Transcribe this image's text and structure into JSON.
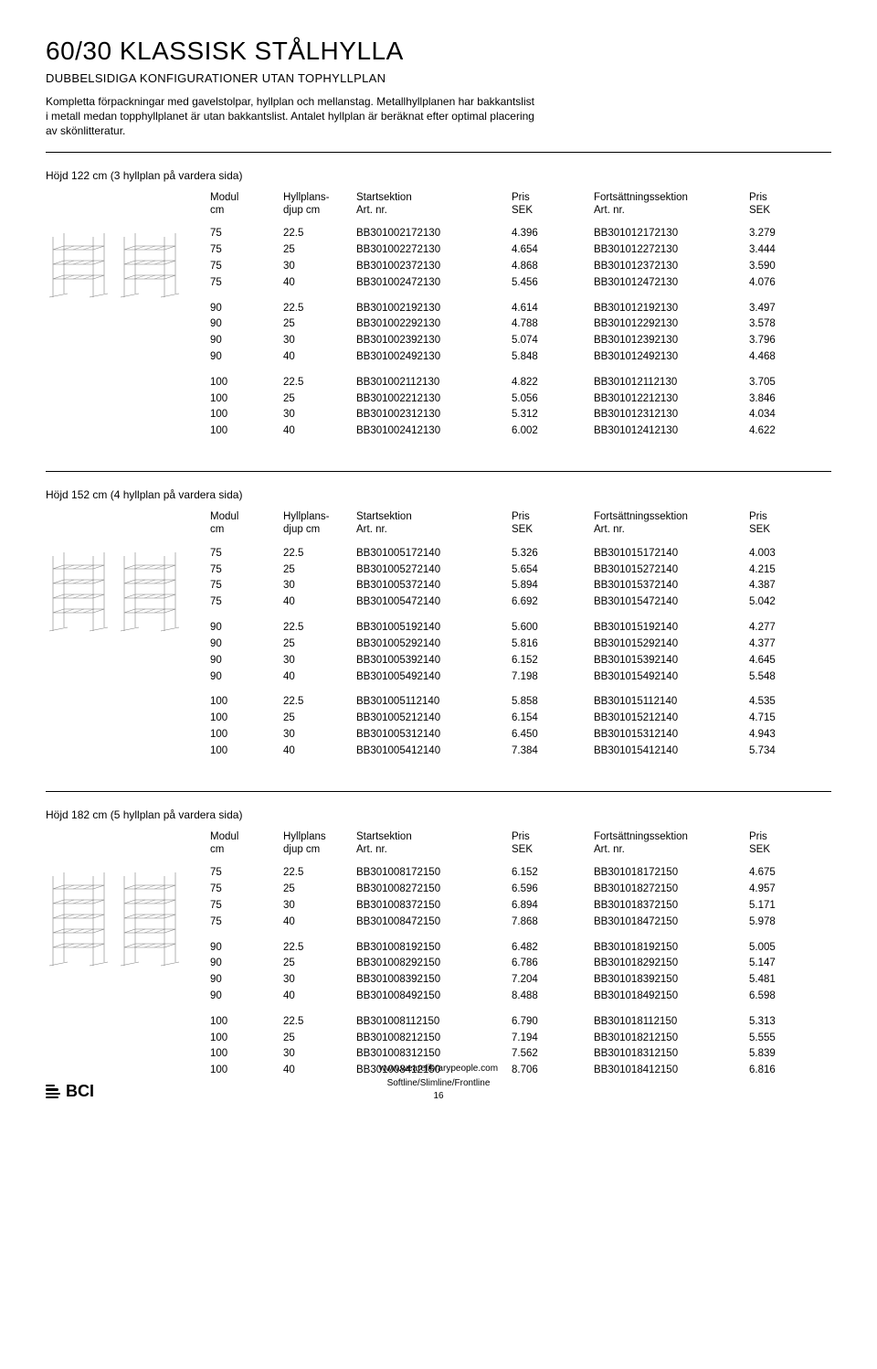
{
  "page_title": "60/30 KLASSISK STÅLHYLLA",
  "subtitle": "DUBBELSIDIGA KONFIGURATIONER UTAN TOPHYLLPLAN",
  "intro": "Kompletta förpackningar med gavelstolpar, hyllplan och mellanstag. Metallhyllplanen har bakkantslist i metall medan topphyllplanet är utan bakkantslist. Antalet hyllplan är beräknat efter optimal placering av skönlitteratur.",
  "headers": {
    "c1a": "Modul",
    "c1b": "cm",
    "c2a": "Hyllplans-",
    "c2b": "djup cm",
    "c2alt": "Hyllplans",
    "c3a": "Startsektion",
    "c3b": "Art. nr.",
    "c4a": "Pris",
    "c4b": "SEK",
    "c5a": "Fortsättningssektion",
    "c5b": "Art. nr.",
    "c6a": "Pris",
    "c6b": "SEK"
  },
  "sections": [
    {
      "title": "Höjd 122 cm (3 hyllplan på vardera sida)",
      "shelves": 3,
      "groups": [
        [
          {
            "m": "75",
            "d": "22.5",
            "sa": "BB301002172130",
            "sp": "4.396",
            "fa": "BB301012172130",
            "fp": "3.279"
          },
          {
            "m": "75",
            "d": "25",
            "sa": "BB301002272130",
            "sp": "4.654",
            "fa": "BB301012272130",
            "fp": "3.444"
          },
          {
            "m": "75",
            "d": "30",
            "sa": "BB301002372130",
            "sp": "4.868",
            "fa": "BB301012372130",
            "fp": "3.590"
          },
          {
            "m": "75",
            "d": "40",
            "sa": "BB301002472130",
            "sp": "5.456",
            "fa": "BB301012472130",
            "fp": "4.076"
          }
        ],
        [
          {
            "m": "90",
            "d": "22.5",
            "sa": "BB301002192130",
            "sp": "4.614",
            "fa": "BB301012192130",
            "fp": "3.497"
          },
          {
            "m": "90",
            "d": "25",
            "sa": "BB301002292130",
            "sp": "4.788",
            "fa": "BB301012292130",
            "fp": "3.578"
          },
          {
            "m": "90",
            "d": "30",
            "sa": "BB301002392130",
            "sp": "5.074",
            "fa": "BB301012392130",
            "fp": "3.796"
          },
          {
            "m": "90",
            "d": "40",
            "sa": "BB301002492130",
            "sp": "5.848",
            "fa": "BB301012492130",
            "fp": "4.468"
          }
        ],
        [
          {
            "m": "100",
            "d": "22.5",
            "sa": "BB301002112130",
            "sp": "4.822",
            "fa": "BB301012112130",
            "fp": "3.705"
          },
          {
            "m": "100",
            "d": "25",
            "sa": "BB301002212130",
            "sp": "5.056",
            "fa": "BB301012212130",
            "fp": "3.846"
          },
          {
            "m": "100",
            "d": "30",
            "sa": "BB301002312130",
            "sp": "5.312",
            "fa": "BB301012312130",
            "fp": "4.034"
          },
          {
            "m": "100",
            "d": "40",
            "sa": "BB301002412130",
            "sp": "6.002",
            "fa": "BB301012412130",
            "fp": "4.622"
          }
        ]
      ]
    },
    {
      "title": "Höjd 152 cm (4 hyllplan på vardera sida)",
      "shelves": 4,
      "groups": [
        [
          {
            "m": "75",
            "d": "22.5",
            "sa": "BB301005172140",
            "sp": "5.326",
            "fa": "BB301015172140",
            "fp": "4.003"
          },
          {
            "m": "75",
            "d": "25",
            "sa": "BB301005272140",
            "sp": "5.654",
            "fa": "BB301015272140",
            "fp": "4.215"
          },
          {
            "m": "75",
            "d": "30",
            "sa": "BB301005372140",
            "sp": "5.894",
            "fa": "BB301015372140",
            "fp": "4.387"
          },
          {
            "m": "75",
            "d": "40",
            "sa": "BB301005472140",
            "sp": "6.692",
            "fa": "BB301015472140",
            "fp": "5.042"
          }
        ],
        [
          {
            "m": "90",
            "d": "22.5",
            "sa": "BB301005192140",
            "sp": "5.600",
            "fa": "BB301015192140",
            "fp": "4.277"
          },
          {
            "m": "90",
            "d": "25",
            "sa": "BB301005292140",
            "sp": "5.816",
            "fa": "BB301015292140",
            "fp": "4.377"
          },
          {
            "m": "90",
            "d": "30",
            "sa": "BB301005392140",
            "sp": "6.152",
            "fa": "BB301015392140",
            "fp": "4.645"
          },
          {
            "m": "90",
            "d": "40",
            "sa": "BB301005492140",
            "sp": "7.198",
            "fa": "BB301015492140",
            "fp": "5.548"
          }
        ],
        [
          {
            "m": "100",
            "d": "22.5",
            "sa": "BB301005112140",
            "sp": "5.858",
            "fa": "BB301015112140",
            "fp": "4.535"
          },
          {
            "m": "100",
            "d": "25",
            "sa": "BB301005212140",
            "sp": "6.154",
            "fa": "BB301015212140",
            "fp": "4.715"
          },
          {
            "m": "100",
            "d": "30",
            "sa": "BB301005312140",
            "sp": "6.450",
            "fa": "BB301015312140",
            "fp": "4.943"
          },
          {
            "m": "100",
            "d": "40",
            "sa": "BB301005412140",
            "sp": "7.384",
            "fa": "BB301015412140",
            "fp": "5.734"
          }
        ]
      ]
    },
    {
      "title": "Höjd 182 cm (5 hyllplan på vardera sida)",
      "shelves": 5,
      "groups": [
        [
          {
            "m": "75",
            "d": "22.5",
            "sa": "BB301008172150",
            "sp": "6.152",
            "fa": "BB301018172150",
            "fp": "4.675"
          },
          {
            "m": "75",
            "d": "25",
            "sa": "BB301008272150",
            "sp": "6.596",
            "fa": "BB301018272150",
            "fp": "4.957"
          },
          {
            "m": "75",
            "d": "30",
            "sa": "BB301008372150",
            "sp": "6.894",
            "fa": "BB301018372150",
            "fp": "5.171"
          },
          {
            "m": "75",
            "d": "40",
            "sa": "BB301008472150",
            "sp": "7.868",
            "fa": "BB301018472150",
            "fp": "5.978"
          }
        ],
        [
          {
            "m": "90",
            "d": "22.5",
            "sa": "BB301008192150",
            "sp": "6.482",
            "fa": "BB301018192150",
            "fp": "5.005"
          },
          {
            "m": "90",
            "d": "25",
            "sa": "BB301008292150",
            "sp": "6.786",
            "fa": "BB301018292150",
            "fp": "5.147"
          },
          {
            "m": "90",
            "d": "30",
            "sa": "BB301008392150",
            "sp": "7.204",
            "fa": "BB301018392150",
            "fp": "5.481"
          },
          {
            "m": "90",
            "d": "40",
            "sa": "BB301008492150",
            "sp": "8.488",
            "fa": "BB301018492150",
            "fp": "6.598"
          }
        ],
        [
          {
            "m": "100",
            "d": "22.5",
            "sa": "BB301008112150",
            "sp": "6.790",
            "fa": "BB301018112150",
            "fp": "5.313"
          },
          {
            "m": "100",
            "d": "25",
            "sa": "BB301008212150",
            "sp": "7.194",
            "fa": "BB301018212150",
            "fp": "5.555"
          },
          {
            "m": "100",
            "d": "30",
            "sa": "BB301008312150",
            "sp": "7.562",
            "fa": "BB301018312150",
            "fp": "5.839"
          },
          {
            "m": "100",
            "d": "40",
            "sa": "BB301008412150",
            "sp": "8.706",
            "fa": "BB301018412150",
            "fp": "6.816"
          }
        ]
      ]
    }
  ],
  "footer": {
    "url": "www.wearelibrarypeople.com",
    "line2": "Softline/Slimline/Frontline",
    "page": "16",
    "logo_text": "BCI"
  },
  "fig": {
    "stroke": "#808080",
    "stroke_width": 0.6,
    "unit_w": 72,
    "top_extra": 14
  }
}
